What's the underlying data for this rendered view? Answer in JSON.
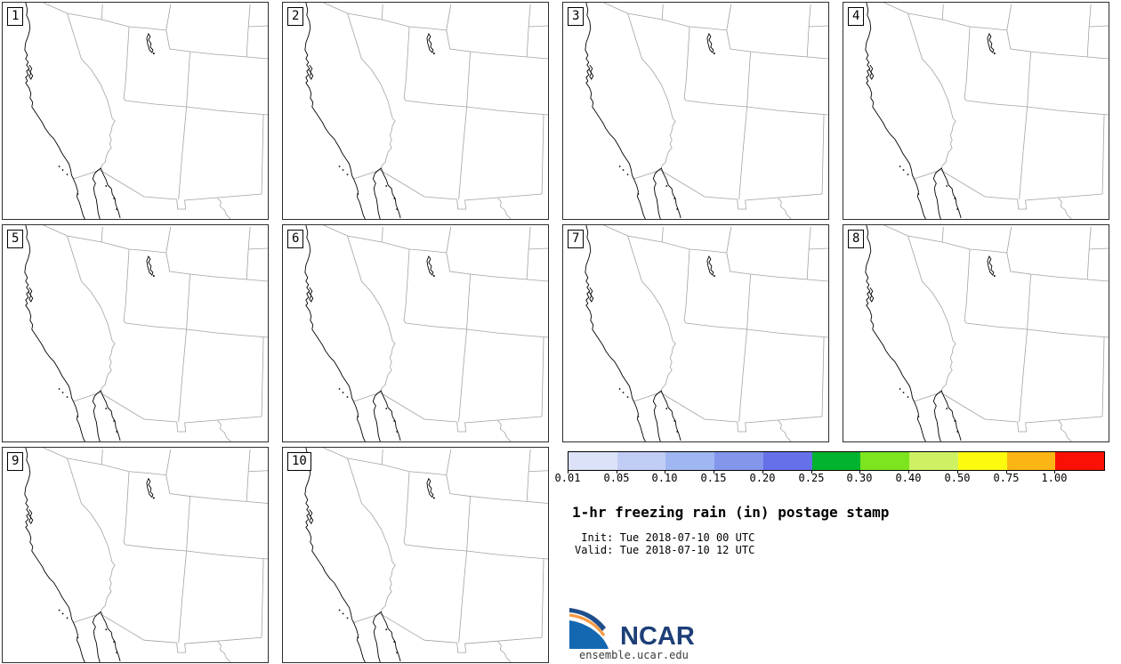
{
  "panels": {
    "labels": [
      "1",
      "2",
      "3",
      "4",
      "5",
      "6",
      "7",
      "8",
      "9",
      "10"
    ]
  },
  "colorbar": {
    "tick_labels": [
      "0.01",
      "0.05",
      "0.10",
      "0.15",
      "0.20",
      "0.25",
      "0.30",
      "0.40",
      "0.50",
      "0.75",
      "1.00"
    ],
    "segment_colors": [
      "#dce2f8",
      "#c2cdf5",
      "#9fb6f2",
      "#8495ec",
      "#6670e8",
      "#00b32e",
      "#7de51f",
      "#cdf163",
      "#fcfa0f",
      "#fbb514",
      "#fb1004"
    ]
  },
  "legend": {
    "title": "1-hr freezing rain (in) postage stamp",
    "init_label": " Init: Tue 2018-07-10 00 UTC",
    "valid_label": "Valid: Tue 2018-07-10 12 UTC"
  },
  "branding": {
    "wordmark": "NCAR",
    "website": "ensemble.ucar.edu",
    "logo_navy": "#1f4e8c",
    "logo_orange": "#f59a42",
    "logo_blue": "#1368b1",
    "wordmark_color": "#1d3f77"
  },
  "map_colors": {
    "coastline": "#000000",
    "state_borders": "#a3a3a3",
    "panel_border": "#2e2e2e"
  },
  "chart_data": {
    "type": "heatmap",
    "title": "1-hr freezing rain (in) postage stamp",
    "subtitle_lines": [
      "Init: Tue 2018-07-10 00 UTC",
      "Valid: Tue 2018-07-10 12 UTC"
    ],
    "units": "in",
    "panel_members": [
      "1",
      "2",
      "3",
      "4",
      "5",
      "6",
      "7",
      "8",
      "9",
      "10"
    ],
    "grid": "10 postage-stamp map panels (4 + 4 + 2) of the southwestern United States",
    "colorbar_levels": [
      0.01,
      0.05,
      0.1,
      0.15,
      0.2,
      0.25,
      0.3,
      0.4,
      0.5,
      0.75,
      1.0
    ],
    "colorbar_colors": [
      "#dce2f8",
      "#c2cdf5",
      "#9fb6f2",
      "#8495ec",
      "#6670e8",
      "#00b32e",
      "#7de51f",
      "#cdf163",
      "#fcfa0f",
      "#fbb514",
      "#fb1004"
    ],
    "values": [],
    "note": "All 10 ensemble-member panels are unshaded: no 1-hr freezing rain >= 0.01 in is depicted anywhere in the domain",
    "legend_position": "right of bottom row"
  }
}
